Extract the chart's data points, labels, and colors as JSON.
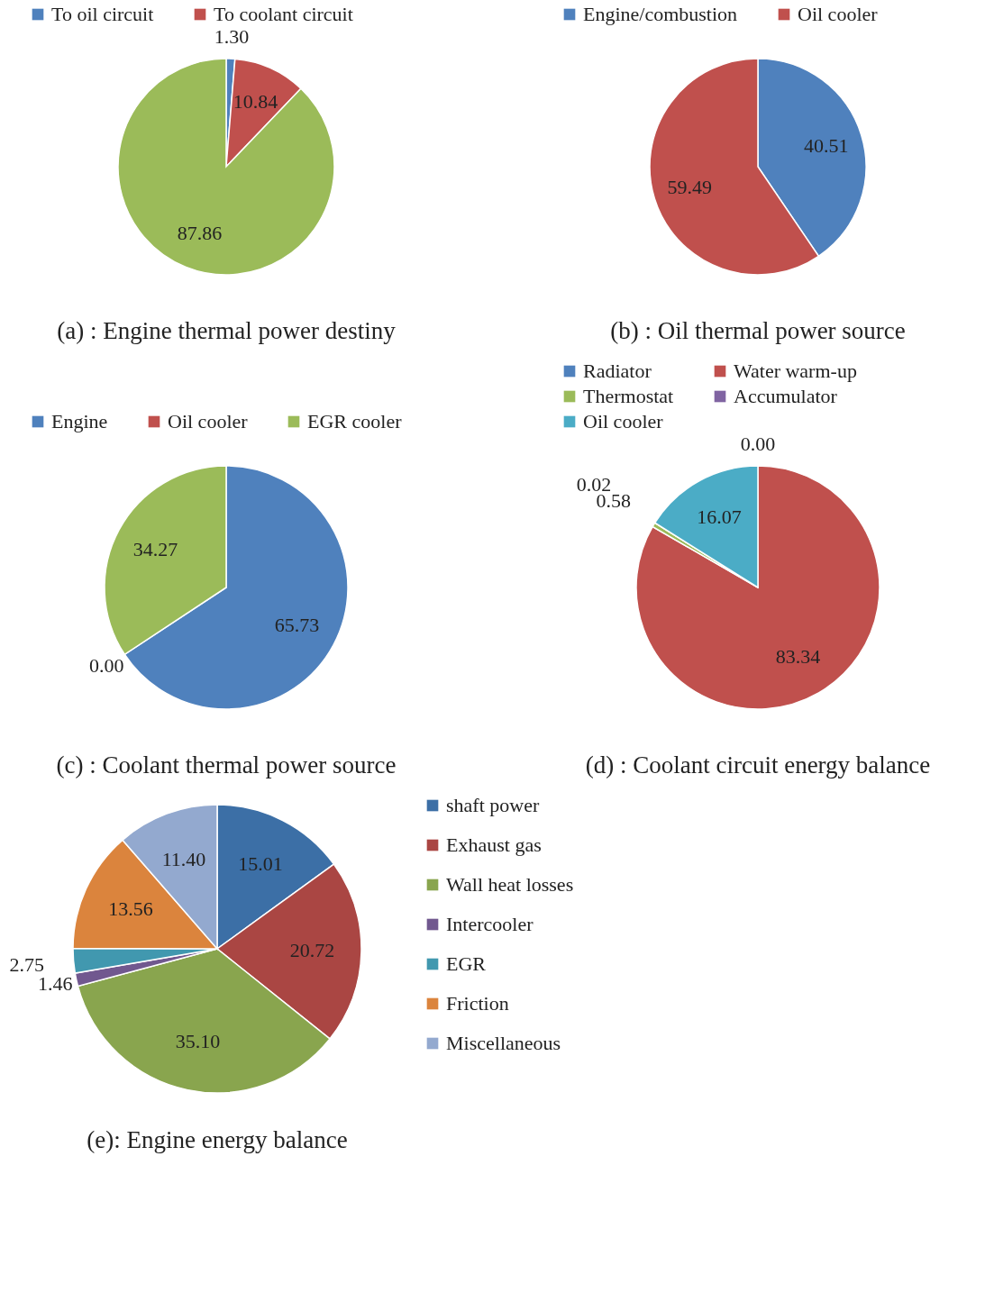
{
  "chart_data": [
    {
      "type": "pie",
      "title": "(a) : Engine thermal power destiny",
      "categories": [
        "To oil circuit",
        "To coolant circuit",
        null
      ],
      "values": [
        1.3,
        10.84,
        87.86
      ],
      "value_labels": [
        "1.30",
        "10.84",
        "87.86"
      ],
      "colors": [
        "#4f81bd",
        "#c0504d",
        "#9bbb59"
      ],
      "legend": "top"
    },
    {
      "type": "pie",
      "title": "(b) : Oil thermal power source",
      "categories": [
        "Engine/combustion",
        "Oil cooler"
      ],
      "values": [
        40.51,
        59.49
      ],
      "value_labels": [
        "40.51",
        "59.49"
      ],
      "colors": [
        "#4f81bd",
        "#c0504d"
      ],
      "legend": "top"
    },
    {
      "type": "pie",
      "title": "(c) : Coolant thermal power source",
      "categories": [
        "Engine",
        "Oil cooler",
        "EGR cooler"
      ],
      "values": [
        65.73,
        0.0,
        34.27
      ],
      "value_labels": [
        "65.73",
        "0.00",
        "34.27"
      ],
      "colors": [
        "#4f81bd",
        "#c0504d",
        "#9bbb59"
      ],
      "legend": "top"
    },
    {
      "type": "pie",
      "title": "(d) : Coolant circuit energy balance",
      "categories": [
        "Radiator",
        "Water warm-up",
        "Thermostat",
        "Accumulator",
        "Oil cooler"
      ],
      "values": [
        0.0,
        83.34,
        0.58,
        0.02,
        16.07
      ],
      "value_labels": [
        "0.00",
        "83.34",
        "0.58",
        "0.02",
        "16.07"
      ],
      "colors": [
        "#4f81bd",
        "#c0504d",
        "#9bbb59",
        "#8064a2",
        "#4bacc6"
      ],
      "legend": "top"
    },
    {
      "type": "pie",
      "title": "(e): Engine energy balance",
      "categories": [
        "shaft power",
        "Exhaust gas",
        "Wall heat losses",
        "Intercooler",
        "EGR",
        "Friction",
        "Miscellaneous"
      ],
      "values": [
        15.01,
        20.72,
        35.1,
        1.46,
        2.75,
        13.56,
        11.4
      ],
      "value_labels": [
        "15.01",
        "20.72",
        "35.10",
        "1.46",
        "2.75",
        "13.56",
        "11.40"
      ],
      "colors": [
        "#3c6fa6",
        "#aa4643",
        "#89a54e",
        "#71588f",
        "#4198af",
        "#db843d",
        "#93a9cf"
      ],
      "legend": "right"
    }
  ]
}
